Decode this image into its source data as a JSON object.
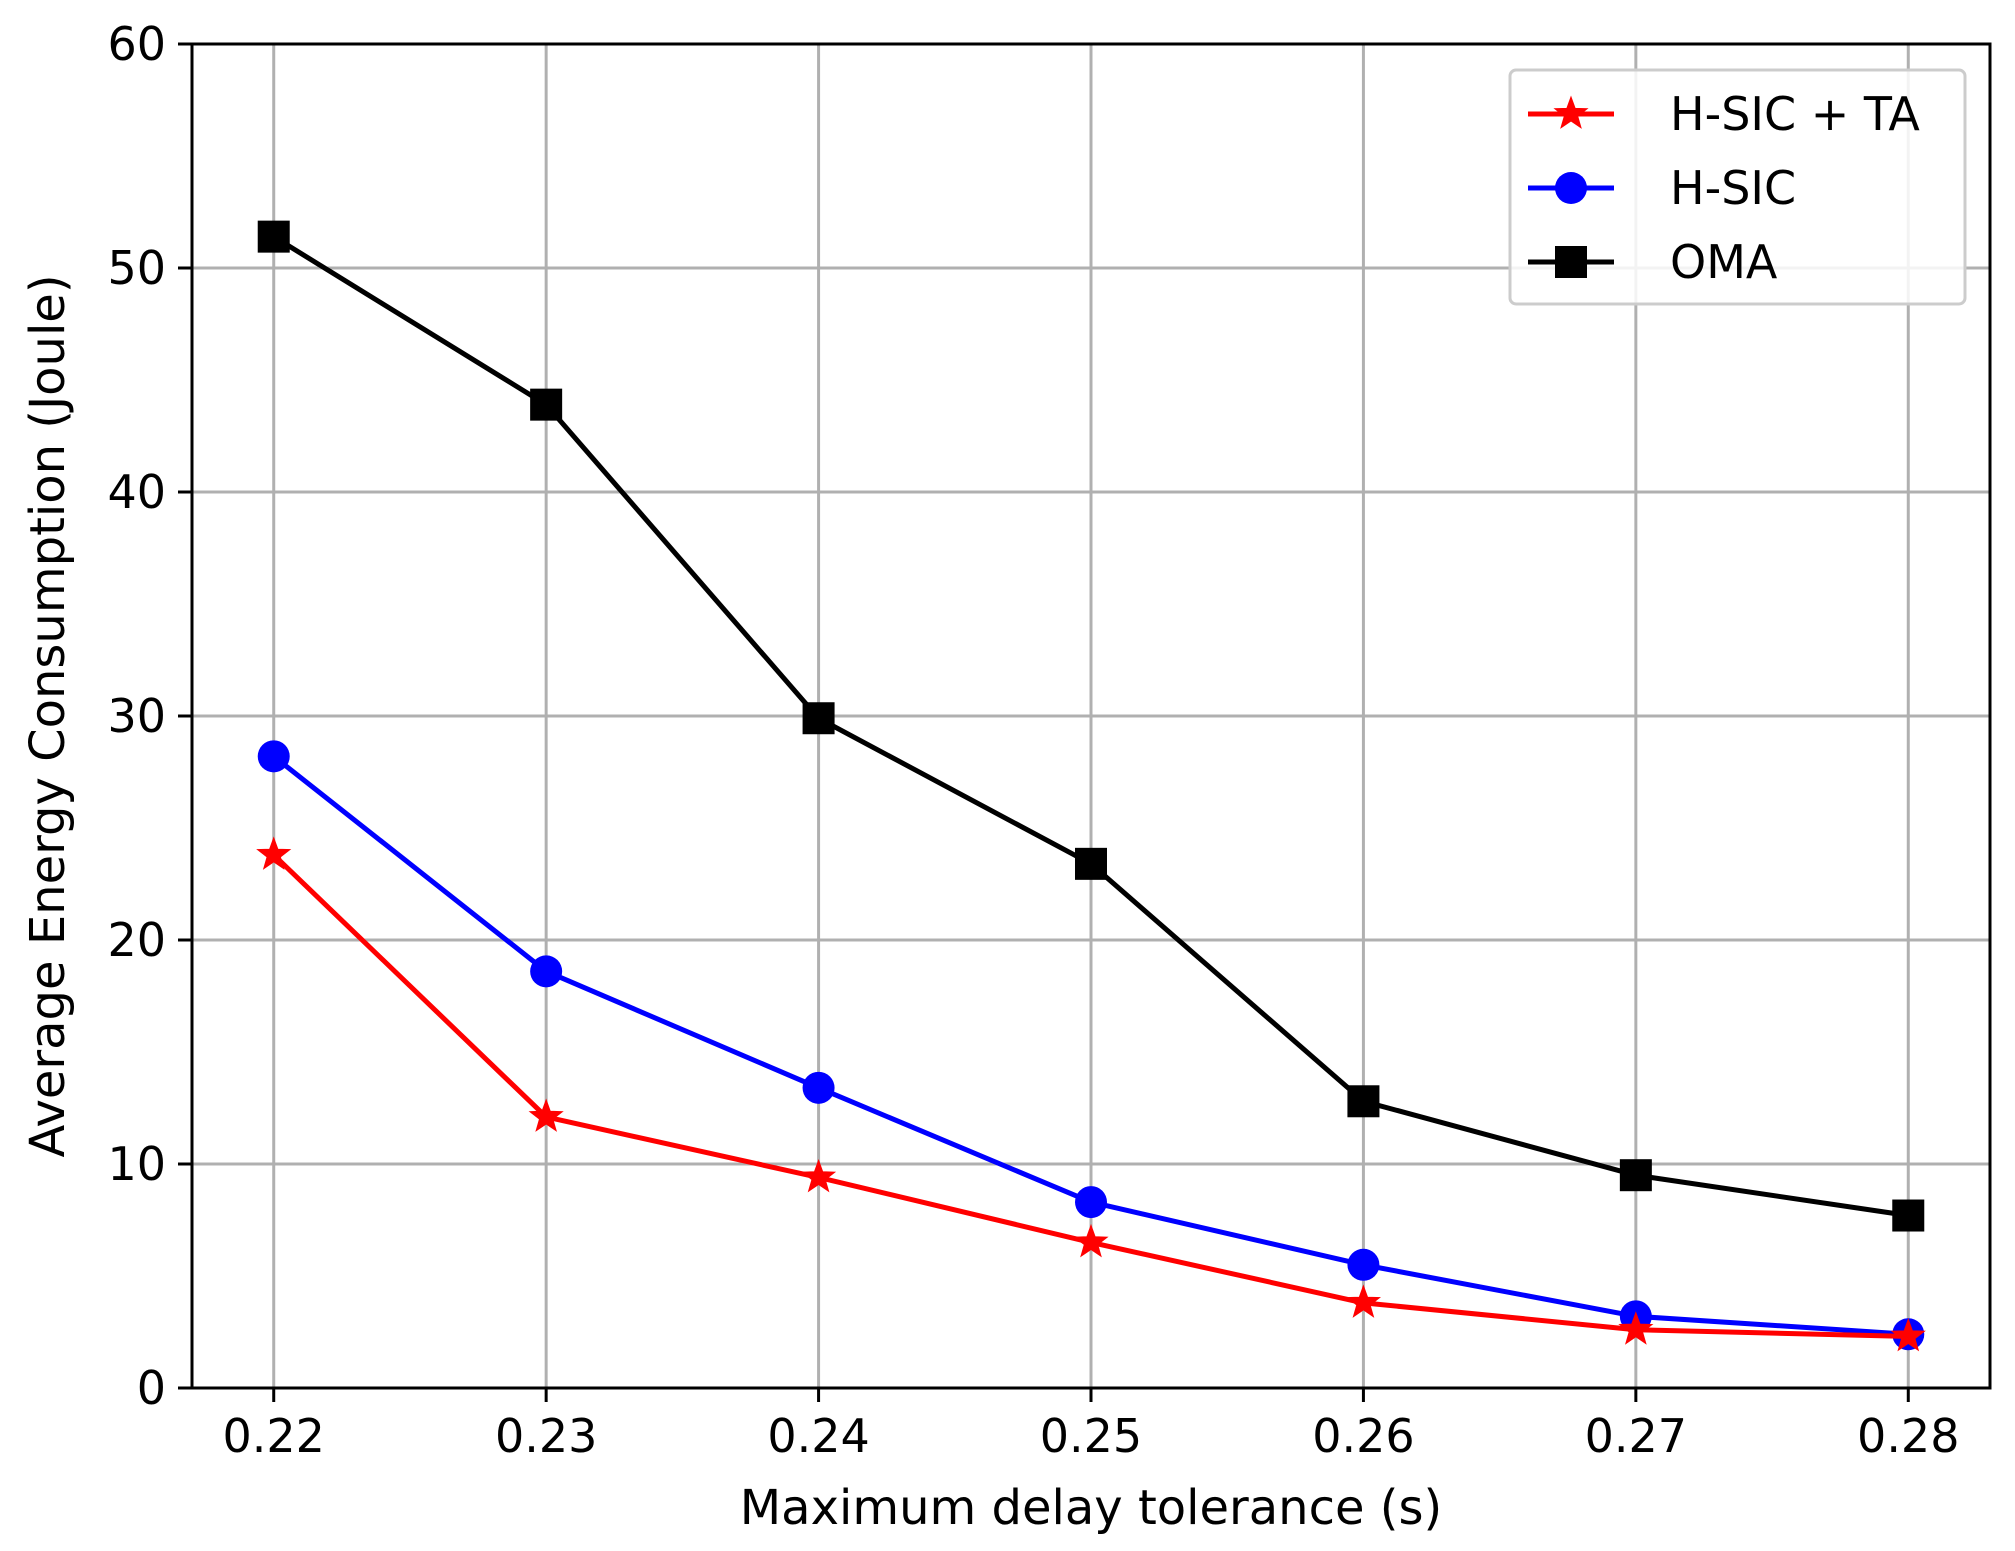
{
  "chart_data": {
    "type": "line",
    "title": "",
    "xlabel": "Maximum delay tolerance (s)",
    "ylabel": "Average Energy Consumption (Joule)",
    "x": [
      0.22,
      0.23,
      0.24,
      0.25,
      0.26,
      0.27,
      0.28
    ],
    "x_tick_labels": [
      "0.22",
      "0.23",
      "0.24",
      "0.25",
      "0.26",
      "0.27",
      "0.28"
    ],
    "y_ticks": [
      0,
      10,
      20,
      30,
      40,
      50,
      60
    ],
    "y_tick_labels": [
      "0",
      "10",
      "20",
      "30",
      "40",
      "50",
      "60"
    ],
    "xlim": [
      0.217,
      0.283
    ],
    "ylim": [
      0,
      60
    ],
    "grid": true,
    "legend_position": "top-right",
    "series": [
      {
        "name": "H-SIC + TA",
        "color": "#ff0000",
        "marker": "star",
        "values": [
          23.8,
          12.1,
          9.4,
          6.5,
          3.8,
          2.6,
          2.3
        ]
      },
      {
        "name": "H-SIC",
        "color": "#0000ff",
        "marker": "circle",
        "values": [
          28.2,
          18.6,
          13.4,
          8.3,
          5.5,
          3.2,
          2.4
        ]
      },
      {
        "name": "OMA",
        "color": "#000000",
        "marker": "square",
        "values": [
          51.4,
          43.9,
          29.9,
          23.4,
          12.8,
          9.5,
          7.7
        ]
      }
    ]
  }
}
